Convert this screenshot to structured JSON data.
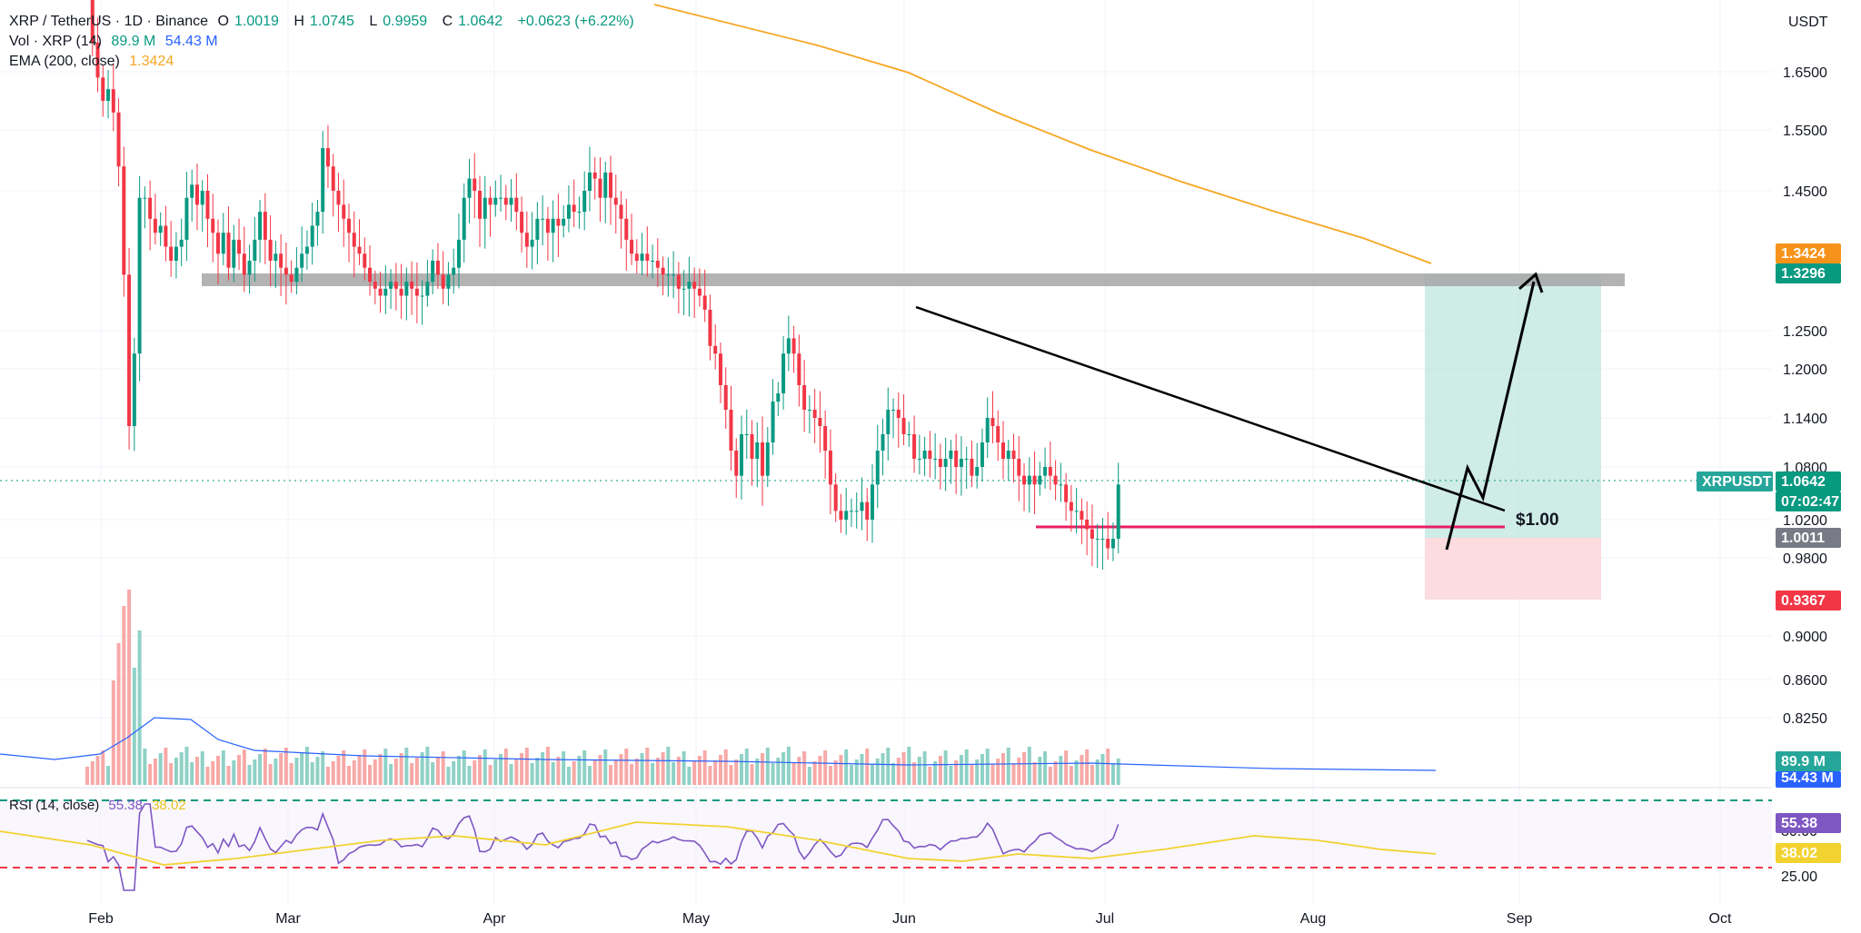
{
  "header": {
    "symbol": "XRP / TetherUS · 1D · Binance",
    "open_label": "O",
    "open": "1.0019",
    "high_label": "H",
    "high": "1.0745",
    "low_label": "L",
    "low": "0.9959",
    "close_label": "C",
    "close": "1.0642",
    "change": "+0.0623 (+6.22%)"
  },
  "volume_legend": {
    "label": "Vol · XRP (14)",
    "value1": "89.9 M",
    "value2": "54.43 M"
  },
  "ema_legend": {
    "label": "EMA (200, close)",
    "value": "1.3424"
  },
  "rsi_legend": {
    "label": "RSI (14, close)",
    "value1": "55.38",
    "value2": "38.02"
  },
  "currency": "USDT",
  "colors": {
    "up": "#089981",
    "down": "#f23645",
    "up_vol": "#8fd1c6",
    "down_vol": "#f7a9a7",
    "ema": "#f5a623",
    "rsi": "#7e57c2",
    "rsi_ma": "#f2d230",
    "trendline": "#000000",
    "support": "#e91e63",
    "resistance_zone": "#a6a6a6",
    "target_zone": "#bfe6df",
    "stop_zone": "#fbd6d9",
    "volume_ma": "#2962ff"
  },
  "chart_data": [
    {
      "type": "candlestick",
      "ylim": [
        0.82,
        1.72
      ],
      "y_ticks": [
        "1.6500",
        "1.5500",
        "1.4500",
        "1.2500",
        "1.2000",
        "1.1400",
        "1.0800",
        "1.0200",
        "0.9800",
        "0.9000",
        "0.8600",
        "0.8250"
      ],
      "x_labels": [
        "Feb",
        "Mar",
        "Apr",
        "May",
        "Jun",
        "Jul",
        "Aug",
        "Sep",
        "Oct"
      ],
      "candles_note": "daily OHLC Jan 28 – Aug 18",
      "closes": [
        1.8,
        1.7,
        1.64,
        1.6,
        1.62,
        1.58,
        1.49,
        1.33,
        1.13,
        1.22,
        1.44,
        1.44,
        1.41,
        1.39,
        1.4,
        1.37,
        1.35,
        1.37,
        1.38,
        1.44,
        1.46,
        1.43,
        1.45,
        1.41,
        1.39,
        1.36,
        1.39,
        1.34,
        1.38,
        1.36,
        1.33,
        1.35,
        1.38,
        1.42,
        1.38,
        1.35,
        1.36,
        1.34,
        1.33,
        1.32,
        1.34,
        1.36,
        1.37,
        1.4,
        1.42,
        1.52,
        1.49,
        1.45,
        1.43,
        1.41,
        1.39,
        1.37,
        1.36,
        1.34,
        1.32,
        1.31,
        1.3,
        1.31,
        1.32,
        1.31,
        1.3,
        1.32,
        1.31,
        1.3,
        1.3,
        1.32,
        1.35,
        1.33,
        1.31,
        1.33,
        1.34,
        1.38,
        1.44,
        1.47,
        1.45,
        1.41,
        1.44,
        1.43,
        1.44,
        1.44,
        1.43,
        1.44,
        1.42,
        1.39,
        1.37,
        1.38,
        1.41,
        1.41,
        1.39,
        1.41,
        1.4,
        1.41,
        1.43,
        1.42,
        1.42,
        1.45,
        1.48,
        1.47,
        1.44,
        1.48,
        1.44,
        1.43,
        1.41,
        1.38,
        1.36,
        1.35,
        1.36,
        1.35,
        1.35,
        1.34,
        1.33,
        1.33,
        1.33,
        1.31,
        1.31,
        1.32,
        1.31,
        1.3,
        1.28,
        1.23,
        1.22,
        1.18,
        1.15,
        1.1,
        1.07,
        1.12,
        1.12,
        1.09,
        1.11,
        1.07,
        1.11,
        1.16,
        1.17,
        1.22,
        1.24,
        1.22,
        1.18,
        1.15,
        1.15,
        1.14,
        1.13,
        1.1,
        1.06,
        1.03,
        1.02,
        1.03,
        1.03,
        1.03,
        1.04,
        1.02,
        1.06,
        1.1,
        1.12,
        1.15,
        1.15,
        1.14,
        1.12,
        1.12,
        1.09,
        1.09,
        1.1,
        1.09,
        1.09,
        1.08,
        1.09,
        1.1,
        1.08,
        1.09,
        1.09,
        1.07,
        1.08,
        1.11,
        1.14,
        1.13,
        1.11,
        1.09,
        1.1,
        1.09,
        1.07,
        1.06,
        1.07,
        1.06,
        1.07,
        1.08,
        1.07,
        1.06,
        1.06,
        1.04,
        1.03,
        1.03,
        1.02,
        1.01,
        1.0,
        1.0,
        1.0,
        0.99,
        1.0,
        1.06
      ]
    }
  ],
  "badges": {
    "ema": "1.3424",
    "target": "1.3296",
    "symbol": "XRPUSDT",
    "price": "1.0642",
    "countdown": "07:02:47",
    "entry": "1.0011",
    "stop": "0.9367",
    "vol1": "89.9 M",
    "vol2": "54.43 M",
    "rsi1": "55.38",
    "rsi2": "38.02"
  },
  "annotations": {
    "support_label": "$1.00"
  },
  "rsi_ticks": [
    "30.00",
    "25.00"
  ]
}
